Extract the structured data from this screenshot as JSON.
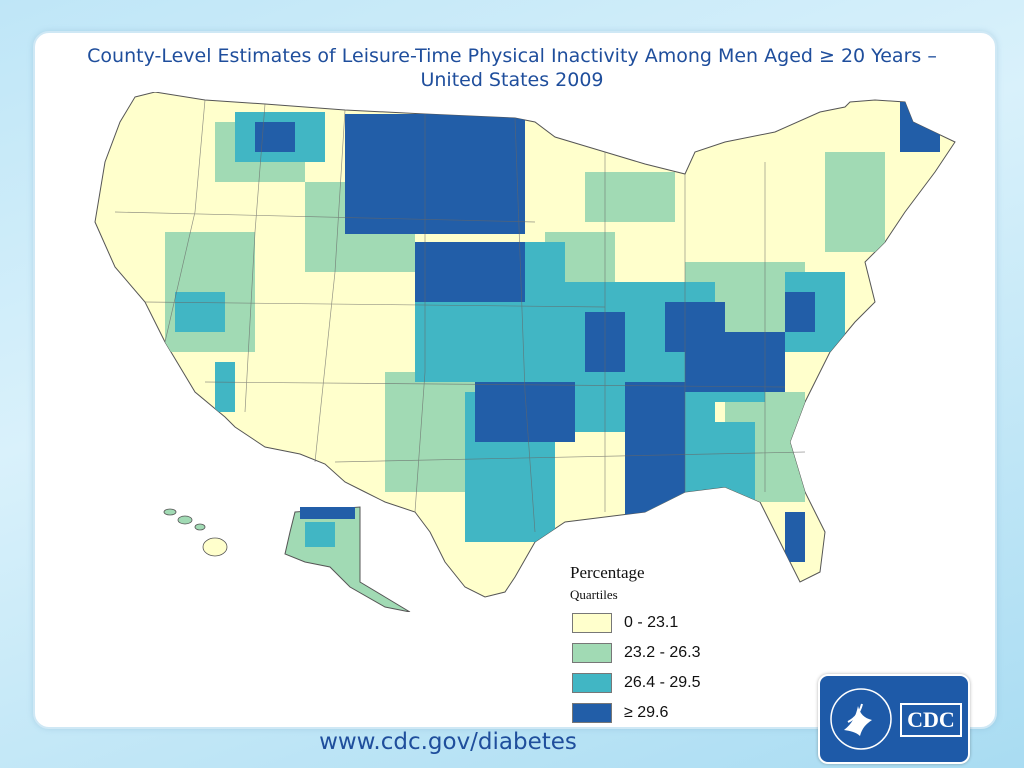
{
  "title_line1": "County-Level Estimates of Leisure-Time Physical Inactivity Among Men Aged ≥ 20 Years –",
  "title_line2": "United States 2009",
  "legend": {
    "heading": "Percentage",
    "subheading": "Quartiles",
    "items": [
      {
        "label": "0 - 23.1",
        "color": "#ffffcc"
      },
      {
        "label": "23.2 - 26.3",
        "color": "#a1dab4"
      },
      {
        "label": "26.4 - 29.5",
        "color": "#41b6c4"
      },
      {
        "label": "29.6",
        "prefix": "≥",
        "color": "#225ea8"
      }
    ]
  },
  "footer_url": "www.cdc.gov/diabetes",
  "logo_text": "CDC"
}
